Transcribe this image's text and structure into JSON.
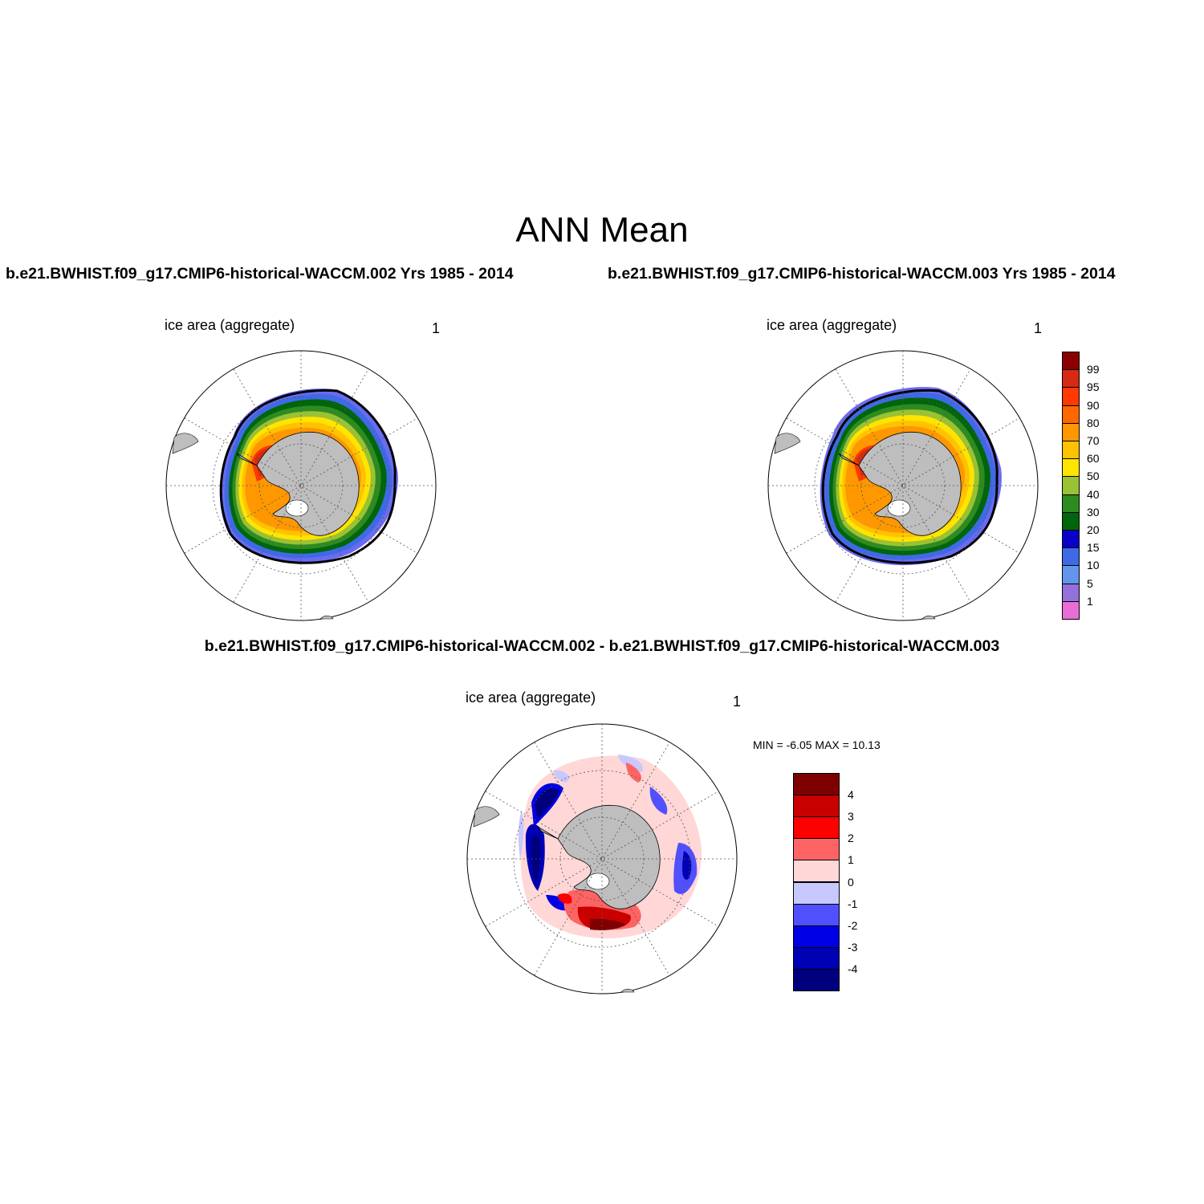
{
  "title": "ANN Mean",
  "panels": {
    "case1": {
      "title": "b.e21.BWHIST.f09_g17.CMIP6-historical-WACCM.002  Yrs 1985 - 2014",
      "variable": "ice area  (aggregate)",
      "units": "1"
    },
    "case2": {
      "title": "b.e21.BWHIST.f09_g17.CMIP6-historical-WACCM.003  Yrs 1985 - 2014",
      "variable": "ice area  (aggregate)",
      "units": "1"
    },
    "diff": {
      "title": "b.e21.BWHIST.f09_g17.CMIP6-historical-WACCM.002 - b.e21.BWHIST.f09_g17.CMIP6-historical-WACCM.003",
      "variable": "ice area  (aggregate)",
      "units": "1",
      "min_label": "MIN =  -6.05 MAX =  10.13"
    }
  },
  "colorbar_main": {
    "labels": [
      "99",
      "95",
      "90",
      "80",
      "70",
      "60",
      "50",
      "40",
      "30",
      "20",
      "15",
      "10",
      "5",
      "1"
    ],
    "colors": [
      "#8B0000",
      "#D42B12",
      "#FF3A00",
      "#FF6800",
      "#FF9700",
      "#FFC200",
      "#FFE400",
      "#9BC134",
      "#2E8B22",
      "#00650B",
      "#0A00C8",
      "#3E6AE6",
      "#6495ED",
      "#9370DB",
      "#E86ED6"
    ]
  },
  "colorbar_diff": {
    "labels": [
      "4",
      "3",
      "2",
      "1",
      "0",
      "-1",
      "-2",
      "-3",
      "-4"
    ],
    "colors": [
      "#7F0000",
      "#C80000",
      "#FF0000",
      "#FF6464",
      "#FFD7D7",
      "#C8C8FF",
      "#5050FF",
      "#0000E6",
      "#0000B4",
      "#00007F"
    ]
  },
  "map_colors": {
    "land": "#BEBEBE",
    "ice_edge_line": "#000000",
    "grid": "#555555"
  }
}
